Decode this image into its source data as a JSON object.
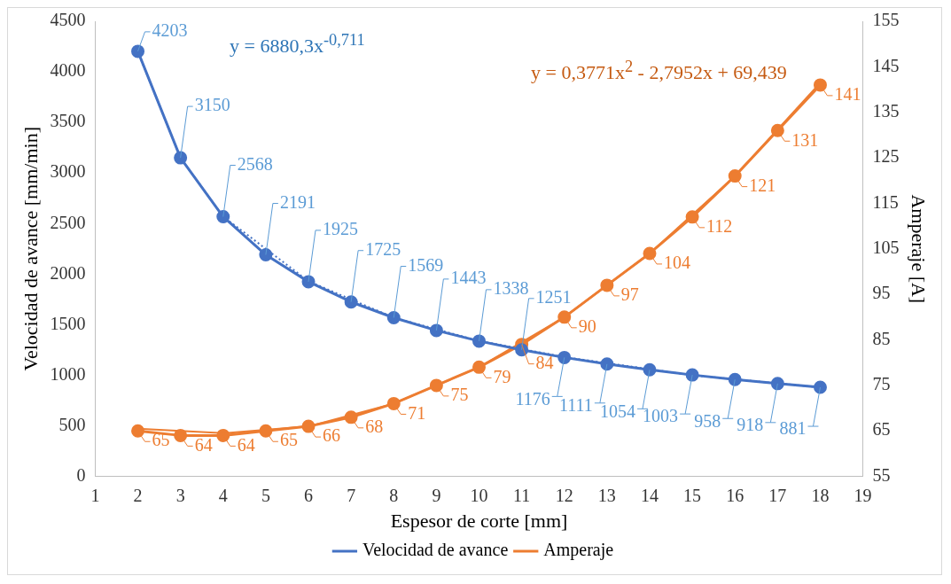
{
  "chart_data": {
    "type": "line",
    "xlabel": "Espesor de corte [mm]",
    "ylabel": "Velocidad de avance [mm/min]",
    "y2label": "Amperaje [A]",
    "x": [
      2,
      3,
      4,
      5,
      6,
      7,
      8,
      9,
      10,
      11,
      12,
      13,
      14,
      15,
      16,
      17,
      18
    ],
    "series": [
      {
        "name": "Velocidad de avance",
        "color": "#4472c4",
        "marker": "circle",
        "values": [
          4203,
          3150,
          2568,
          2191,
          1925,
          1725,
          1569,
          1443,
          1338,
          1251,
          1176,
          1111,
          1054,
          1003,
          958,
          918,
          881
        ],
        "value_labels": [
          "4203",
          "3150",
          "2568",
          "2191",
          "1925",
          "1725",
          "1569",
          "1443",
          "1338",
          "1251",
          "1176",
          "1111",
          "1054",
          "1003",
          "958",
          "918",
          "881"
        ]
      },
      {
        "name": "Amperaje",
        "color": "#ed7d31",
        "axis": "y2",
        "marker": "circle",
        "values": [
          65,
          64,
          64,
          65,
          66,
          68,
          71,
          75,
          79,
          84,
          90,
          97,
          104,
          112,
          121,
          131,
          141
        ],
        "value_labels": [
          "65",
          "64",
          "64",
          "65",
          "66",
          "68",
          "71",
          "75",
          "79",
          "84",
          "90",
          "97",
          "104",
          "112",
          "121",
          "131",
          "141"
        ]
      },
      {
        "type": "line",
        "color": "#4472c4",
        "line_style": "dotted",
        "marker": "none",
        "x": [
          2,
          3,
          4,
          6,
          8,
          10,
          12,
          15,
          18
        ],
        "values": [
          4200,
          3150,
          2570,
          1930,
          1570,
          1340,
          1180,
          1000,
          880
        ]
      },
      {
        "type": "line",
        "color": "#ed7d31",
        "axis": "y2",
        "marker": "none",
        "x": [
          2,
          4,
          6,
          8,
          10,
          12,
          14,
          16,
          18
        ],
        "values": [
          65.5,
          64.5,
          66,
          71,
          79,
          90,
          104,
          121,
          141.5
        ]
      }
    ],
    "legend": "bottom",
    "grid": false,
    "xlim": [
      1,
      19
    ],
    "xticks": [
      1,
      2,
      3,
      4,
      5,
      6,
      7,
      8,
      9,
      10,
      11,
      12,
      13,
      14,
      15,
      16,
      17,
      18,
      19
    ],
    "ylim": [
      0,
      4500
    ],
    "yticks": [
      0,
      500,
      1000,
      1500,
      2000,
      2500,
      3000,
      3500,
      4000,
      4500
    ],
    "y2lim": [
      55,
      155
    ],
    "y2ticks": [
      55,
      65,
      75,
      85,
      95,
      105,
      115,
      125,
      135,
      145,
      155
    ],
    "annotations": [
      "y = 6880,3x$^{-0,711}$",
      "y = 0,3771x$^{2}$ - 2,7952x + 69,439"
    ]
  }
}
